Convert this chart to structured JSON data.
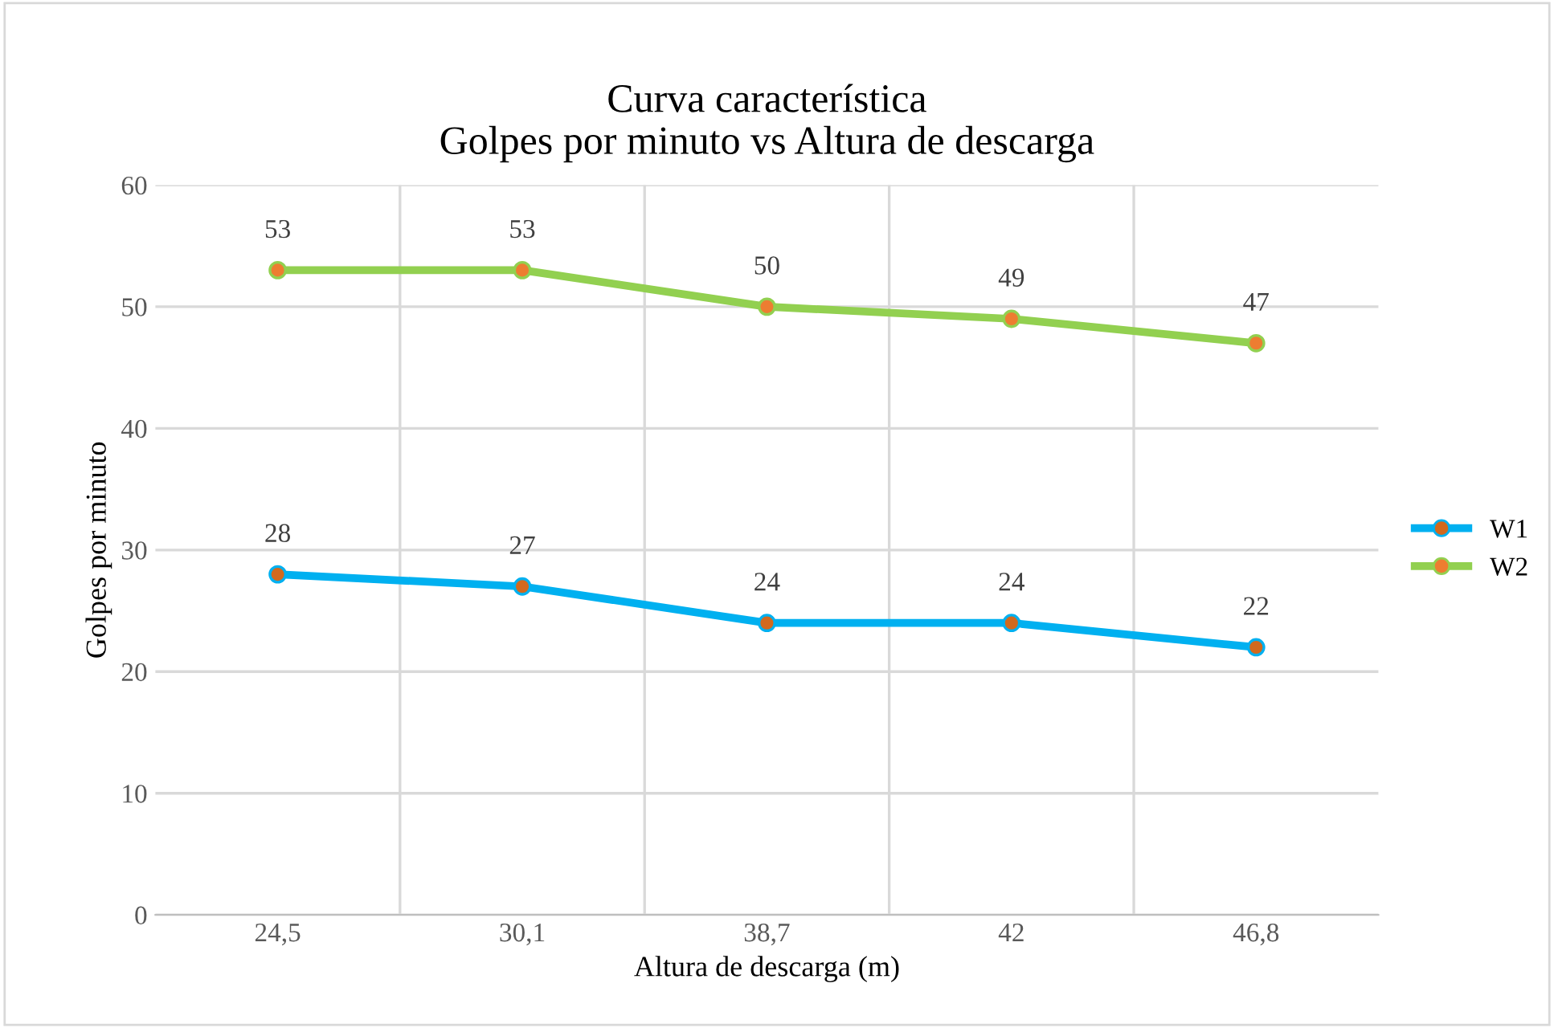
{
  "chart_data": {
    "type": "line",
    "title": "Curva característica\nGolpes por minuto vs Altura de descarga",
    "xlabel": "Altura de descarga (m)",
    "ylabel": "Golpes por minuto",
    "categories": [
      "24,5",
      "30,1",
      "38,7",
      "42",
      "46,8"
    ],
    "series": [
      {
        "name": "W1",
        "color": "#00b0f0",
        "colors": [
          "#d2691e",
          "#d2691e",
          "#d2691e",
          "#d2691e",
          "#d2691e"
        ],
        "values": [
          28,
          27,
          24,
          24,
          22
        ]
      },
      {
        "name": "W2",
        "color": "#92d050",
        "colors": [
          "#ed7d31",
          "#ed7d31",
          "#ed7d31",
          "#ed7d31",
          "#ed7d31"
        ],
        "values": [
          53,
          53,
          50,
          49,
          47
        ]
      }
    ],
    "ylim": [
      0,
      60
    ],
    "yticks": [
      0,
      10,
      20,
      30,
      40,
      50,
      60
    ],
    "grid": true,
    "legend": "right",
    "marker": "circle",
    "line_style": "solid",
    "data_labels": true
  }
}
